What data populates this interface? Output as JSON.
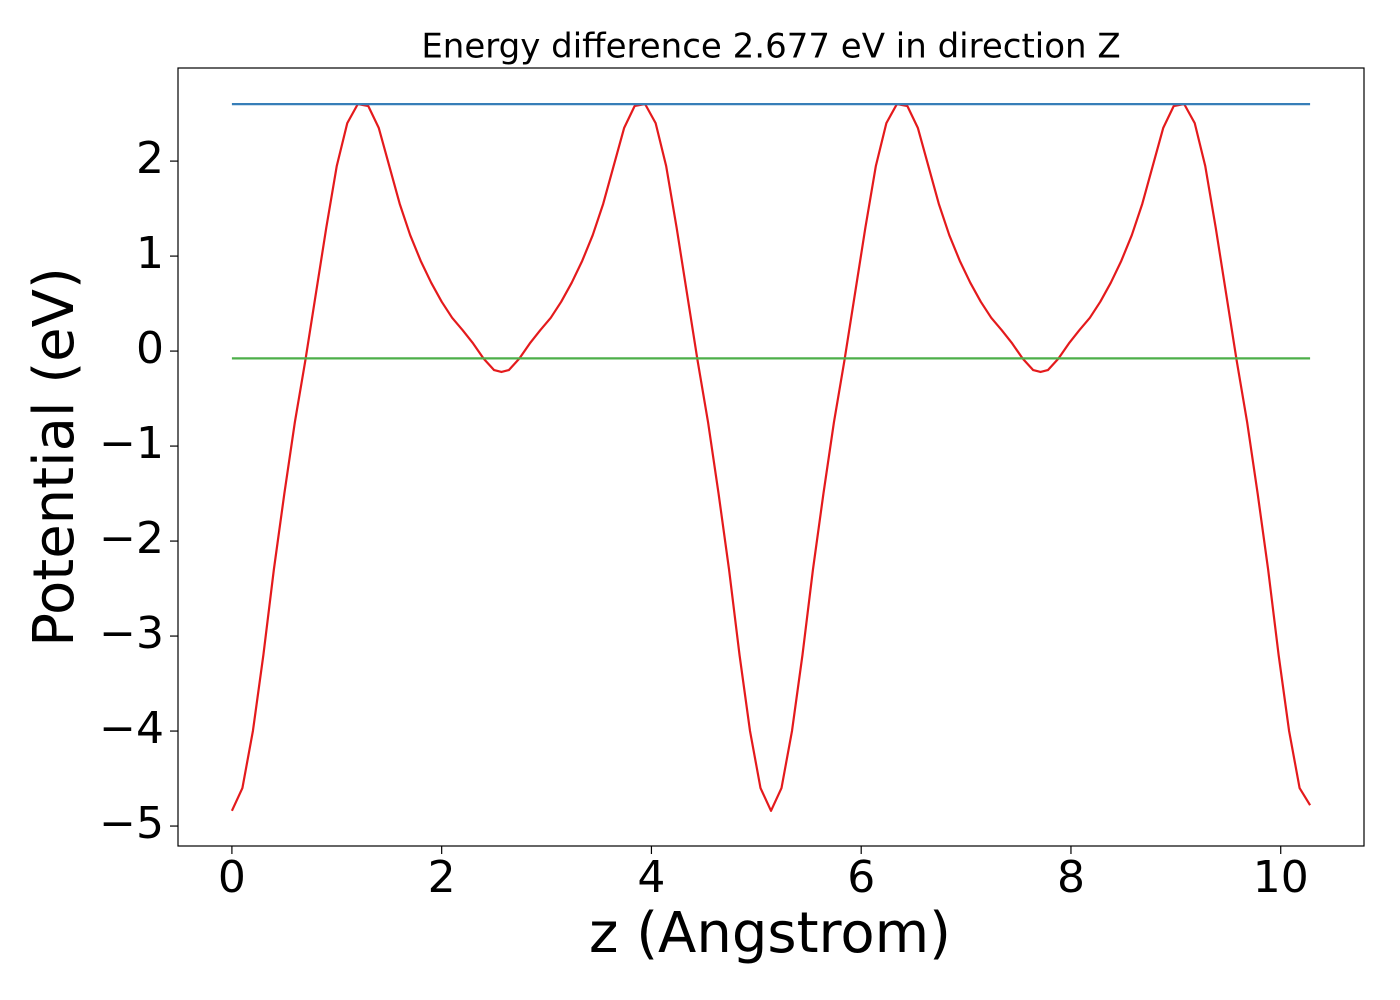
{
  "chart_data": {
    "type": "line",
    "title": "Energy difference 2.677 eV in direction Z",
    "xlabel": "z (Angstrom)",
    "ylabel": "Potential (eV)",
    "xlim": [
      -0.514,
      10.794
    ],
    "ylim": [
      -5.21,
      2.98
    ],
    "xticks": [
      0,
      2,
      4,
      6,
      8,
      10
    ],
    "yticks": [
      {
        "value": -5,
        "label": "−5"
      },
      {
        "value": -4,
        "label": "−4"
      },
      {
        "value": -3,
        "label": "−3"
      },
      {
        "value": -2,
        "label": "−2"
      },
      {
        "value": -1,
        "label": "−1"
      },
      0,
      1,
      2
    ],
    "series": [
      {
        "color": "#e41a1c",
        "x": [
          0,
          0.1,
          0.2,
          0.3,
          0.4,
          0.5,
          0.6,
          0.7,
          0.8,
          0.9,
          1.0,
          1.1,
          1.2,
          1.3,
          1.4,
          1.5,
          1.6,
          1.7,
          1.8,
          1.9,
          2.0,
          2.1,
          2.2,
          2.3,
          2.4,
          2.5,
          2.57,
          2.64,
          2.74,
          2.84,
          2.94,
          3.04,
          3.14,
          3.24,
          3.34,
          3.44,
          3.54,
          3.64,
          3.74,
          3.84,
          3.94,
          4.04,
          4.14,
          4.24,
          4.34,
          4.44,
          4.54,
          4.64,
          4.74,
          4.84,
          4.94,
          5.04,
          5.14,
          5.24,
          5.34,
          5.44,
          5.54,
          5.64,
          5.74,
          5.84,
          5.94,
          6.04,
          6.14,
          6.24,
          6.34,
          6.44,
          6.54,
          6.64,
          6.74,
          6.84,
          6.94,
          7.04,
          7.14,
          7.24,
          7.34,
          7.44,
          7.54,
          7.64,
          7.71,
          7.78,
          7.88,
          7.98,
          8.08,
          8.18,
          8.28,
          8.38,
          8.48,
          8.58,
          8.68,
          8.78,
          8.88,
          8.98,
          9.08,
          9.18,
          9.28,
          9.38,
          9.48,
          9.58,
          9.68,
          9.78,
          9.88,
          9.98,
          10.08,
          10.18,
          10.28
        ],
        "values": [
          -4.84,
          -4.6,
          -4.0,
          -3.2,
          -2.3,
          -1.5,
          -0.75,
          -0.1,
          0.6,
          1.3,
          1.95,
          2.4,
          2.6,
          2.58,
          2.35,
          1.95,
          1.55,
          1.22,
          0.95,
          0.72,
          0.52,
          0.35,
          0.22,
          0.08,
          -0.08,
          -0.2,
          -0.22,
          -0.2,
          -0.08,
          0.08,
          0.22,
          0.35,
          0.52,
          0.72,
          0.95,
          1.22,
          1.55,
          1.95,
          2.35,
          2.58,
          2.6,
          2.4,
          1.95,
          1.3,
          0.6,
          -0.1,
          -0.75,
          -1.5,
          -2.3,
          -3.2,
          -4.0,
          -4.6,
          -4.84,
          -4.6,
          -4.0,
          -3.2,
          -2.3,
          -1.5,
          -0.75,
          -0.1,
          0.6,
          1.3,
          1.95,
          2.4,
          2.6,
          2.58,
          2.35,
          1.95,
          1.55,
          1.22,
          0.95,
          0.72,
          0.52,
          0.35,
          0.22,
          0.08,
          -0.08,
          -0.2,
          -0.22,
          -0.2,
          -0.08,
          0.08,
          0.22,
          0.35,
          0.52,
          0.72,
          0.95,
          1.22,
          1.55,
          1.95,
          2.35,
          2.58,
          2.6,
          2.4,
          1.95,
          1.3,
          0.6,
          -0.1,
          -0.75,
          -1.5,
          -2.3,
          -3.2,
          -4.0,
          -4.6,
          -4.78
        ]
      },
      {
        "color": "#377eb8",
        "x": [
          0,
          10.28
        ],
        "values": [
          2.6,
          2.6
        ]
      },
      {
        "color": "#4daf4a",
        "x": [
          0,
          10.28
        ],
        "values": [
          -0.077,
          -0.077
        ]
      }
    ]
  }
}
